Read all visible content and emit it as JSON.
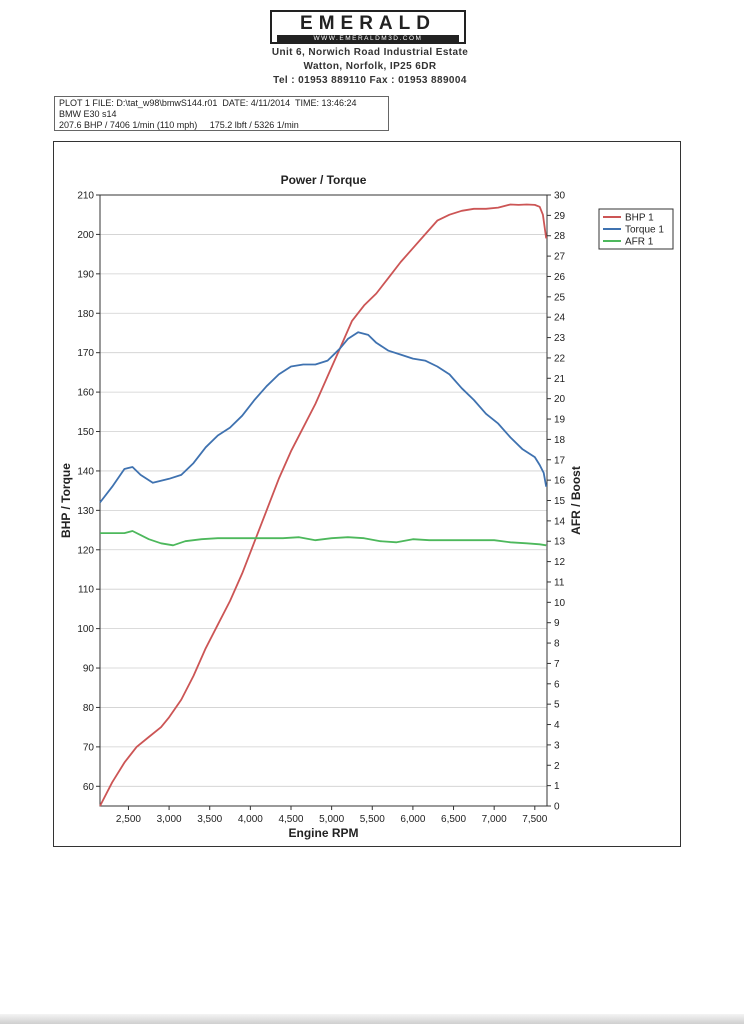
{
  "header": {
    "logo_text": "EMERALD",
    "logo_url": "WWW.EMERALDM3D.COM",
    "address_line1": "Unit 6, Norwich Road Industrial Estate",
    "address_line2": "Watton, Norfolk, IP25 6DR",
    "contact": "Tel : 01953 889110    Fax : 01953 889004"
  },
  "info": {
    "line1": "PLOT 1 FILE: D:\\tat_w98\\bmwS144.r01  DATE: 4/11/2014  TIME: 13:46:24",
    "line2": "BMW E30 s14",
    "line3": "207.6 BHP / 7406 1/min (110 mph)     175.2 lbft / 5326 1/min"
  },
  "chart_data": {
    "type": "line",
    "title": "Power / Torque",
    "xlabel": "Engine RPM",
    "ylabel": "BHP / Torque",
    "y2label": "AFR / Boost",
    "xlim": [
      2150,
      7650
    ],
    "ylim": [
      55,
      210
    ],
    "y2lim": [
      0,
      30
    ],
    "grid": true,
    "legend_position": "top-right",
    "x_ticks": [
      2500,
      3000,
      3500,
      4000,
      4500,
      5000,
      5500,
      6000,
      6500,
      7000,
      7500
    ],
    "x_tick_labels": [
      "2,500",
      "3,000",
      "3,500",
      "4,000",
      "4,500",
      "5,000",
      "5,500",
      "6,000",
      "6,500",
      "7,000",
      "7,500"
    ],
    "y_ticks": [
      60,
      70,
      80,
      90,
      100,
      110,
      120,
      130,
      140,
      150,
      160,
      170,
      180,
      190,
      200,
      210
    ],
    "y_tick_labels": [
      "60",
      "70",
      "80",
      "90",
      "100",
      "110",
      "120",
      "130",
      "140",
      "150",
      "160",
      "170",
      "180",
      "190",
      "200",
      "210"
    ],
    "y2_ticks": [
      0,
      1,
      2,
      3,
      4,
      5,
      6,
      7,
      8,
      9,
      10,
      11,
      12,
      13,
      14,
      15,
      16,
      17,
      18,
      19,
      20,
      21,
      22,
      23,
      24,
      25,
      26,
      27,
      28,
      29,
      30
    ],
    "y2_tick_labels": [
      "0",
      "1",
      "2",
      "3",
      "4",
      "5",
      "6",
      "7",
      "8",
      "9",
      "10",
      "11",
      "12",
      "13",
      "14",
      "15",
      "16",
      "17",
      "18",
      "19",
      "20",
      "21",
      "22",
      "23",
      "24",
      "25",
      "26",
      "27",
      "28",
      "29",
      "30"
    ],
    "series": [
      {
        "name": "BHP 1",
        "axis": "left",
        "color": "#cc5555",
        "x": [
          2150,
          2300,
          2450,
          2600,
          2750,
          2900,
          3000,
          3150,
          3300,
          3450,
          3600,
          3750,
          3900,
          4050,
          4200,
          4350,
          4500,
          4650,
          4800,
          4950,
          5100,
          5250,
          5400,
          5550,
          5700,
          5850,
          6000,
          6150,
          6300,
          6450,
          6600,
          6750,
          6900,
          7050,
          7200,
          7300,
          7400,
          7500,
          7560,
          7600,
          7640
        ],
        "y": [
          55,
          61,
          66,
          70,
          72.5,
          75,
          77.5,
          82,
          88,
          95,
          101,
          107,
          114,
          122,
          130,
          138,
          145,
          151,
          157,
          164,
          171,
          178,
          182,
          185,
          189,
          193,
          196.5,
          200,
          203.5,
          205,
          206,
          206.5,
          206.5,
          206.8,
          207.6,
          207.5,
          207.6,
          207.5,
          207,
          205,
          199
        ]
      },
      {
        "name": "Torque 1",
        "axis": "left",
        "color": "#3f72b0",
        "x": [
          2150,
          2300,
          2450,
          2550,
          2650,
          2800,
          2900,
          3000,
          3150,
          3300,
          3450,
          3600,
          3750,
          3900,
          4050,
          4200,
          4350,
          4500,
          4650,
          4800,
          4950,
          5100,
          5200,
          5326,
          5450,
          5550,
          5700,
          5850,
          6000,
          6150,
          6300,
          6450,
          6600,
          6750,
          6900,
          7050,
          7200,
          7350,
          7500,
          7560,
          7610,
          7640
        ],
        "y": [
          132,
          136,
          140.5,
          141,
          139,
          137,
          137.5,
          138,
          139,
          142,
          146,
          149,
          151,
          154,
          158,
          161.5,
          164.5,
          166.5,
          167,
          167,
          168,
          171,
          173.5,
          175.2,
          174.5,
          172.5,
          170.5,
          169.5,
          168.5,
          168,
          166.5,
          164.5,
          161,
          158,
          154.5,
          152,
          148.5,
          145.5,
          143.5,
          141.5,
          139.5,
          136
        ]
      },
      {
        "name": "AFR 1",
        "axis": "right",
        "color": "#4db85c",
        "x": [
          2150,
          2300,
          2450,
          2550,
          2650,
          2750,
          2900,
          3050,
          3200,
          3400,
          3600,
          3800,
          4000,
          4200,
          4400,
          4600,
          4800,
          5000,
          5200,
          5400,
          5600,
          5800,
          6000,
          6200,
          6400,
          6600,
          6800,
          7000,
          7200,
          7400,
          7560,
          7640
        ],
        "y": [
          13.4,
          13.4,
          13.4,
          13.5,
          13.3,
          13.1,
          12.9,
          12.8,
          13.0,
          13.1,
          13.15,
          13.15,
          13.15,
          13.15,
          13.15,
          13.2,
          13.05,
          13.15,
          13.2,
          13.15,
          13.0,
          12.95,
          13.1,
          13.05,
          13.05,
          13.05,
          13.05,
          13.05,
          12.95,
          12.9,
          12.85,
          12.8
        ]
      }
    ]
  }
}
